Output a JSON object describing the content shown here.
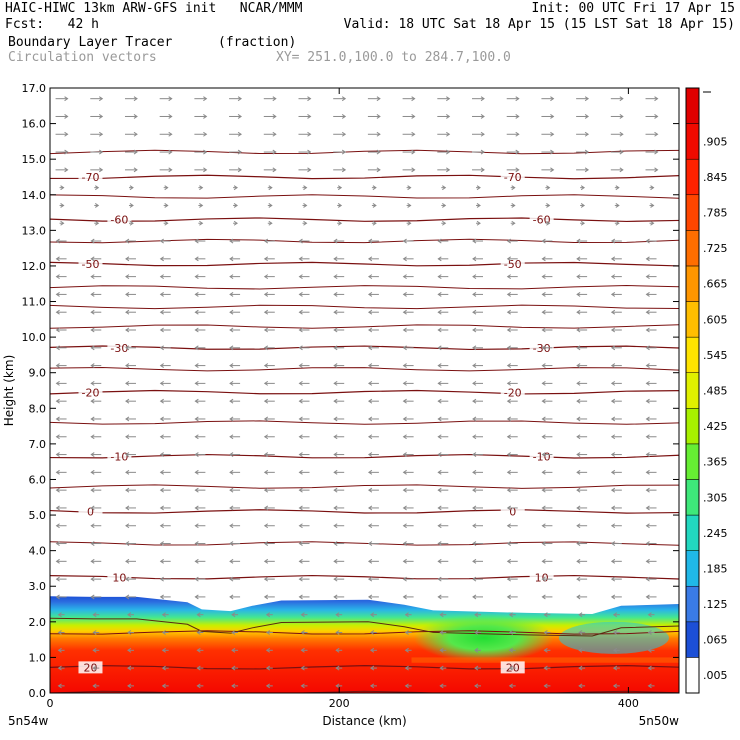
{
  "header": {
    "left1": "HAIC-HIWC 13km ARW-GFS init   NCAR/MMM",
    "right1": "Init: 00 UTC Fri 17 Apr 15",
    "left2": "Fcst:   42 h",
    "right2": "Valid: 18 UTC Sat 18 Apr 15 (15 LST Sat 18 Apr 15)",
    "field": "Boundary Layer Tracer",
    "units": "(fraction)",
    "vectors": "Circulation vectors",
    "xy": "XY= 251.0,100.0 to 284.7,100.0"
  },
  "chart_data": {
    "type": "heatmap",
    "ylabel": "Height (km)",
    "xlabel": "Distance (km)",
    "ylim": [
      0,
      17
    ],
    "xlim": [
      0,
      435
    ],
    "yticks": [
      "0.0",
      "1.0",
      "2.0",
      "3.0",
      "4.0",
      "5.0",
      "6.0",
      "7.0",
      "8.0",
      "9.0",
      "10.0",
      "11.0",
      "12.0",
      "13.0",
      "14.0",
      "15.0",
      "16.0",
      "17.0"
    ],
    "xticks": [
      0,
      200,
      400
    ],
    "xtick_labels": [
      "0",
      "200",
      "400"
    ],
    "endpoint_left": "5n54w",
    "endpoint_right": "5n50w",
    "colorbar_labels": [
      ".005",
      ".065",
      ".125",
      ".185",
      ".245",
      ".305",
      ".365",
      ".425",
      ".485",
      ".545",
      ".605",
      ".665",
      ".725",
      ".785",
      ".845",
      ".905"
    ],
    "colorbar_colors": [
      "#ffffff",
      "#1c4fd6",
      "#3a7be6",
      "#20b8e8",
      "#22d8c0",
      "#3ee87a",
      "#66ee33",
      "#a8f000",
      "#e0f000",
      "#ffe400",
      "#ffbe00",
      "#ff9600",
      "#ff6e00",
      "#ff4600",
      "#ff2200",
      "#f00a00",
      "#e00000"
    ],
    "tracer_top_km": [
      {
        "x": 0,
        "top": 2.72
      },
      {
        "x": 30,
        "top": 2.7
      },
      {
        "x": 60,
        "top": 2.7
      },
      {
        "x": 95,
        "top": 2.55
      },
      {
        "x": 105,
        "top": 2.35
      },
      {
        "x": 125,
        "top": 2.3
      },
      {
        "x": 140,
        "top": 2.45
      },
      {
        "x": 160,
        "top": 2.6
      },
      {
        "x": 220,
        "top": 2.62
      },
      {
        "x": 245,
        "top": 2.48
      },
      {
        "x": 265,
        "top": 2.32
      },
      {
        "x": 330,
        "top": 2.25
      },
      {
        "x": 375,
        "top": 2.22
      },
      {
        "x": 395,
        "top": 2.45
      },
      {
        "x": 435,
        "top": 2.5
      }
    ],
    "temperature_isotherms_c": [
      {
        "value": "20",
        "y": 0.72,
        "labeled": true
      },
      {
        "value": "10",
        "y": 3.25,
        "labeled": true
      },
      {
        "value": "0",
        "y": 5.1,
        "labeled": true
      },
      {
        "value": "-10",
        "y": 6.65,
        "labeled": true
      },
      {
        "value": "-20",
        "y": 8.45,
        "labeled": true
      },
      {
        "value": "-30",
        "y": 9.7,
        "labeled": true
      },
      {
        "value": "-50",
        "y": 12.05,
        "labeled": true
      },
      {
        "value": "-60",
        "y": 13.3,
        "labeled": true
      },
      {
        "value": "-70",
        "y": 14.5,
        "labeled": true
      }
    ],
    "extra_contour_heights_km": [
      0.0,
      1.7,
      4.2,
      5.8,
      7.6,
      9.1,
      10.3,
      10.85,
      11.4,
      12.7,
      13.95,
      15.2
    ],
    "wind_direction_levels": [
      {
        "from_km": 14.5,
        "to_km": 17,
        "direction": "east"
      },
      {
        "from_km": 13.0,
        "to_km": 14.5,
        "direction": "weak"
      },
      {
        "from_km": 0,
        "to_km": 13.0,
        "direction": "west"
      }
    ]
  }
}
